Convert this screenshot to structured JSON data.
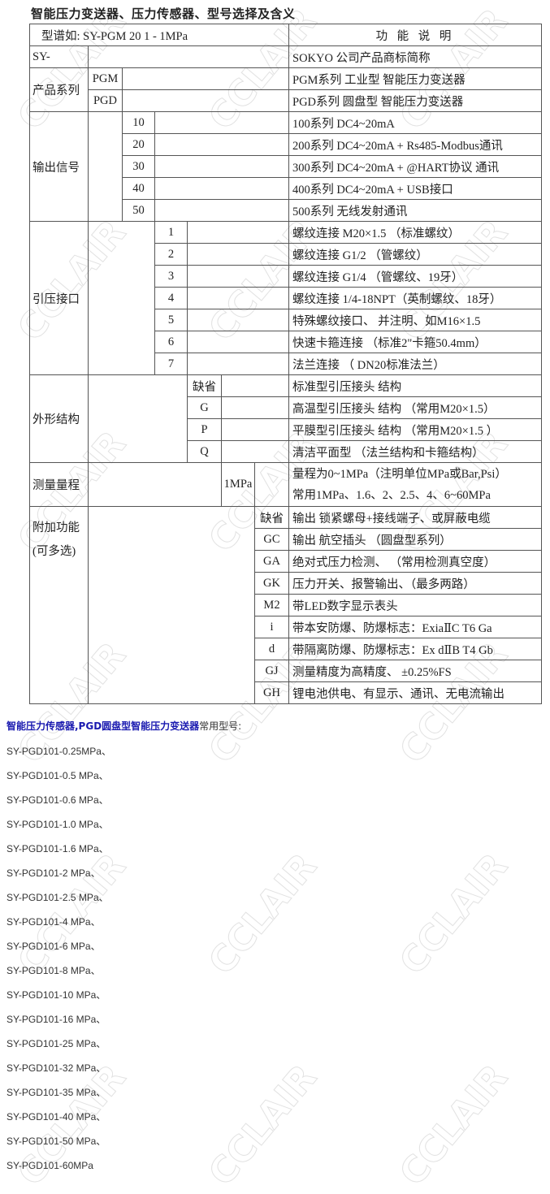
{
  "title": "智能压力变送器、压力传感器、型号选择及含义",
  "watermark": "CCLAIR",
  "table": {
    "header": {
      "model_example": "型谱如:  SY-PGM  20 1 - 1MPa",
      "function": "功 能 说 明"
    },
    "sections": [
      {
        "label": "SY-",
        "rows": [
          {
            "code": "",
            "desc": "SOKYO 公司产品商标简称"
          }
        ]
      },
      {
        "label": "产品系列",
        "rows": [
          {
            "code": "PGM",
            "desc": "PGM系列 工业型 智能压力变送器"
          },
          {
            "code": "PGD",
            "desc": "PGD系列  圆盘型 智能压力变送器"
          }
        ]
      },
      {
        "label": "输出信号",
        "rows": [
          {
            "code": "10",
            "desc": "100系列 DC4~20mA"
          },
          {
            "code": "20",
            "desc": "200系列 DC4~20mA + Rs485-Modbus通讯"
          },
          {
            "code": "30",
            "desc": "300系列 DC4~20mA + @HART协议 通讯"
          },
          {
            "code": "40",
            "desc": "400系列 DC4~20mA + USB接口"
          },
          {
            "code": "50",
            "desc": "500系列 无线发射通讯"
          }
        ]
      },
      {
        "label": "引压接口",
        "rows": [
          {
            "code": "1",
            "desc": "螺纹连接   M20×1.5   （标准螺纹）"
          },
          {
            "code": "2",
            "desc": "螺纹连接   G1/2          （管螺纹）"
          },
          {
            "code": "3",
            "desc": "螺纹连接   G1/4          （管螺纹、19牙）"
          },
          {
            "code": "4",
            "desc": "螺纹连接   1/4-18NPT（英制螺纹、18牙）"
          },
          {
            "code": "5",
            "desc": "特殊螺纹接口、 并注明、如M16×1.5"
          },
          {
            "code": "6",
            "desc": "快速卡箍连接        （标准2\"卡箍50.4mm）"
          },
          {
            "code": "7",
            "desc": "法兰连接              （ DN20标准法兰）"
          }
        ]
      },
      {
        "label": "外形结构",
        "rows": [
          {
            "code": "缺省",
            "desc": "标准型引压接头  结构"
          },
          {
            "code": "G",
            "desc": "高温型引压接头  结构   （常用M20×1.5）"
          },
          {
            "code": "P",
            "desc": "平膜型引压接头  结构   （常用M20×1.5 ）"
          },
          {
            "code": "Q",
            "desc": "清洁平面型         （法兰结构和卡箍结构）"
          }
        ]
      },
      {
        "label": "测量量程",
        "rows": [
          {
            "code": "1MPa",
            "desc": "量程为0~1MPa（注明单位MPa或Bar,Psi）",
            "desc2": "常用1MPa、1.6、2、2.5、4、6~60MPa"
          }
        ]
      },
      {
        "label": "附加功能",
        "label2": "(可多选)",
        "rows": [
          {
            "code": "缺省",
            "desc": "输出  锁紧螺母+接线端子、或屏蔽电缆"
          },
          {
            "code": "GC",
            "desc": "输出  航空插头       （圆盘型系列）"
          },
          {
            "code": "GA",
            "desc": "绝对式压力检测、     （常用检测真空度）"
          },
          {
            "code": "GK",
            "desc": "压力开关、报警输出、（最多两路）"
          },
          {
            "code": "M2",
            "desc": "带LED数字显示表头"
          },
          {
            "code": "i",
            "desc": "带本安防爆、防爆标志：ExiaⅡC T6 Ga"
          },
          {
            "code": "d",
            "desc": "带隔离防爆、防爆标志：Ex dⅡB T4 Gb"
          },
          {
            "code": "GJ",
            "desc": "测量精度为高精度、 ±0.25%FS"
          },
          {
            "code": "GH",
            "desc": "锂电池供电、有显示、通讯、无电流输出"
          }
        ]
      }
    ]
  },
  "models_section": {
    "title_bold": "智能压力传感器,PGD圆盘型智能压力变送器",
    "title_rest": "常用型号:",
    "items": [
      "SY-PGD101-0.25MPa、",
      "SY-PGD101-0.5 MPa、",
      "SY-PGD101-0.6 MPa、",
      "SY-PGD101-1.0 MPa、",
      "SY-PGD101-1.6 MPa、",
      "SY-PGD101-2 MPa、",
      "SY-PGD101-2.5 MPa、",
      "SY-PGD101-4 MPa、",
      "SY-PGD101-6 MPa、",
      "SY-PGD101-8 MPa、",
      "SY-PGD101-10 MPa、",
      "SY-PGD101-16 MPa、",
      "SY-PGD101-25 MPa、",
      "SY-PGD101-32 MPa、",
      "SY-PGD101-35 MPa、",
      "SY-PGD101-40 MPa、",
      "SY-PGD101-50 MPa、",
      "SY-PGD101-60MPa"
    ]
  }
}
